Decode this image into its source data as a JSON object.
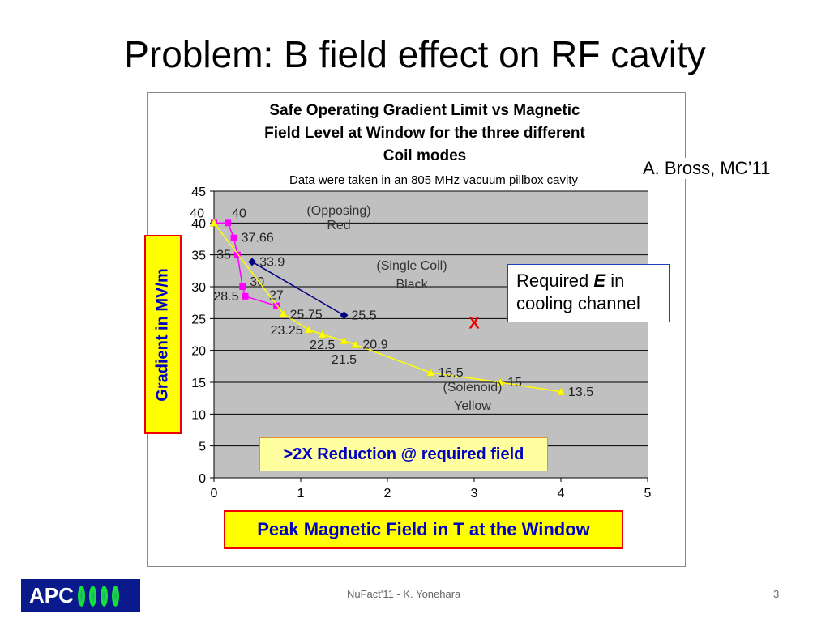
{
  "slide": {
    "title": "Problem: B field effect on RF cavity",
    "credit": "A. Bross, MC’11",
    "footer": "NuFact'11 - K. Yonehara",
    "page": "3",
    "logo": "APC"
  },
  "annotations": {
    "ylabel_box": "Gradient in MV/m",
    "xlabel_box": "Peak Magnetic Field in T at the Window",
    "required_pre": "Required ",
    "required_e": "E",
    "required_post": " in",
    "required_line2": "cooling channel",
    "marker": "X",
    "reduction": ">2X Reduction @ required field"
  },
  "chart_data": {
    "type": "scatter",
    "title": "Safe Operating Gradient Limit vs  Magnetic Field Level at Window for the three different Coil modes",
    "title_lines": [
      "Safe Operating Gradient Limit vs  Magnetic",
      "Field Level at Window for the three different",
      "Coil modes"
    ],
    "subtitle": "Data were taken in an 805 MHz vacuum pillbox cavity",
    "xlim": [
      0,
      5
    ],
    "ylim": [
      0,
      45
    ],
    "xticks": [
      0,
      1,
      2,
      3,
      4,
      5
    ],
    "yticks": [
      0,
      5,
      10,
      15,
      20,
      25,
      30,
      35,
      40,
      45
    ],
    "grid": true,
    "series": [
      {
        "name": "Opposing (Red)",
        "label_lines": [
          "(Opposing)",
          "Red"
        ],
        "color": "#ff00ff",
        "marker": "square",
        "x": [
          0,
          0.16,
          0.23,
          0.27,
          0.33,
          0.36,
          0.72
        ],
        "y": [
          40,
          40,
          37.66,
          35,
          30,
          28.5,
          27
        ],
        "labels": [
          "40",
          "40",
          "37.66",
          "35",
          "30",
          "28.5",
          "27"
        ]
      },
      {
        "name": "Single Coil (Black)",
        "label_lines": [
          "(Single Coil)",
          "Black"
        ],
        "color": "#000080",
        "marker": "diamond",
        "x": [
          0.44,
          1.5
        ],
        "y": [
          33.9,
          25.5
        ],
        "labels": [
          "33.9",
          "25.5"
        ]
      },
      {
        "name": "Solenoid (Yellow)",
        "label_lines": [
          "(Solenoid)",
          "Yellow"
        ],
        "color": "#ffff00",
        "marker": "triangle",
        "x": [
          0,
          0.8,
          1.09,
          1.25,
          1.5,
          1.63,
          2.5,
          3.3,
          4.0
        ],
        "y": [
          40,
          25.75,
          23.25,
          22.5,
          21.5,
          20.9,
          16.5,
          15,
          13.5
        ],
        "labels": [
          "",
          "25.75",
          "23.25",
          "22.5",
          "21.5",
          "20.9",
          "16.5",
          "15",
          "13.5"
        ]
      }
    ],
    "required_point": {
      "x": 3.0,
      "y": 24.5
    }
  }
}
